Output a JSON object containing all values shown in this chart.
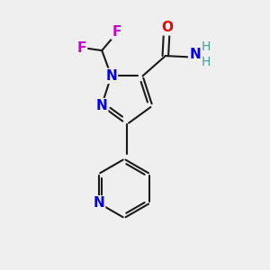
{
  "bg_color": "#efefef",
  "bond_color": "#1a1a1a",
  "N_color": "#0000ee",
  "O_color": "#ee0000",
  "F_color": "#cc00cc",
  "H_color": "#4a9999",
  "bond_width": 1.5,
  "font_size_atoms": 11,
  "font_size_H": 10,
  "xlim": [
    0,
    10
  ],
  "ylim": [
    0,
    10
  ]
}
